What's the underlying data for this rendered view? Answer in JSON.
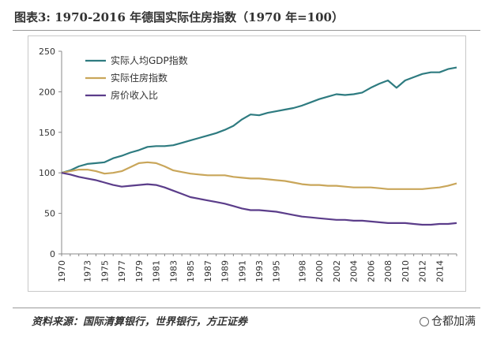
{
  "header": {
    "title": "图表3:  1970-2016 年德国实际住房指数（1970 年=100）"
  },
  "source": {
    "text": "资料来源：国际清算银行，世界银行，方正证券"
  },
  "watermark": {
    "text": "仓都加满",
    "icon": "weibo-icon"
  },
  "chart_data": {
    "type": "line",
    "title": "",
    "xlabel": "",
    "ylabel": "",
    "ylim": [
      0,
      250
    ],
    "yticks": [
      "0",
      "50",
      "100",
      "150",
      "200",
      "250"
    ],
    "xlim": [
      1970,
      2016
    ],
    "xticks": [
      "1970",
      "1973",
      "1975",
      "1977",
      "1979",
      "1981",
      "1983",
      "1985",
      "1987",
      "1989",
      "1991",
      "1993",
      "1995",
      "1998",
      "2000",
      "2002",
      "2004",
      "2006",
      "2008",
      "2010",
      "2012",
      "2014"
    ],
    "grid": false,
    "legend_position": "top-left",
    "x": [
      1970,
      1971,
      1972,
      1973,
      1974,
      1975,
      1976,
      1977,
      1978,
      1979,
      1980,
      1981,
      1982,
      1983,
      1984,
      1985,
      1986,
      1987,
      1988,
      1989,
      1990,
      1991,
      1992,
      1993,
      1994,
      1995,
      1996,
      1997,
      1998,
      1999,
      2000,
      2001,
      2002,
      2003,
      2004,
      2005,
      2006,
      2007,
      2008,
      2009,
      2010,
      2011,
      2012,
      2013,
      2014,
      2015,
      2016
    ],
    "series": [
      {
        "name": "实际人均GDP指数",
        "color": "#2e7b80",
        "values": [
          100,
          103,
          108,
          111,
          112,
          113,
          118,
          121,
          125,
          128,
          132,
          133,
          133,
          134,
          137,
          140,
          143,
          146,
          149,
          153,
          158,
          166,
          172,
          171,
          174,
          176,
          178,
          180,
          183,
          187,
          191,
          194,
          197,
          196,
          197,
          199,
          205,
          210,
          214,
          205,
          214,
          218,
          222,
          224,
          224,
          228,
          230
        ]
      },
      {
        "name": "实际住房指数",
        "color": "#c9a65a",
        "values": [
          100,
          102,
          104,
          104,
          102,
          99,
          100,
          102,
          107,
          112,
          113,
          112,
          108,
          103,
          101,
          99,
          98,
          97,
          97,
          97,
          95,
          94,
          93,
          93,
          92,
          91,
          90,
          88,
          86,
          85,
          85,
          84,
          84,
          83,
          82,
          82,
          82,
          81,
          80,
          80,
          80,
          80,
          80,
          81,
          82,
          84,
          87
        ]
      },
      {
        "name": "房价收入比",
        "color": "#5b3d8a",
        "values": [
          100,
          98,
          95,
          93,
          91,
          88,
          85,
          83,
          84,
          85,
          86,
          85,
          82,
          78,
          74,
          70,
          68,
          66,
          64,
          62,
          59,
          56,
          54,
          54,
          53,
          52,
          50,
          48,
          46,
          45,
          44,
          43,
          42,
          42,
          41,
          41,
          40,
          39,
          38,
          38,
          38,
          37,
          36,
          36,
          37,
          37,
          38
        ]
      }
    ]
  }
}
